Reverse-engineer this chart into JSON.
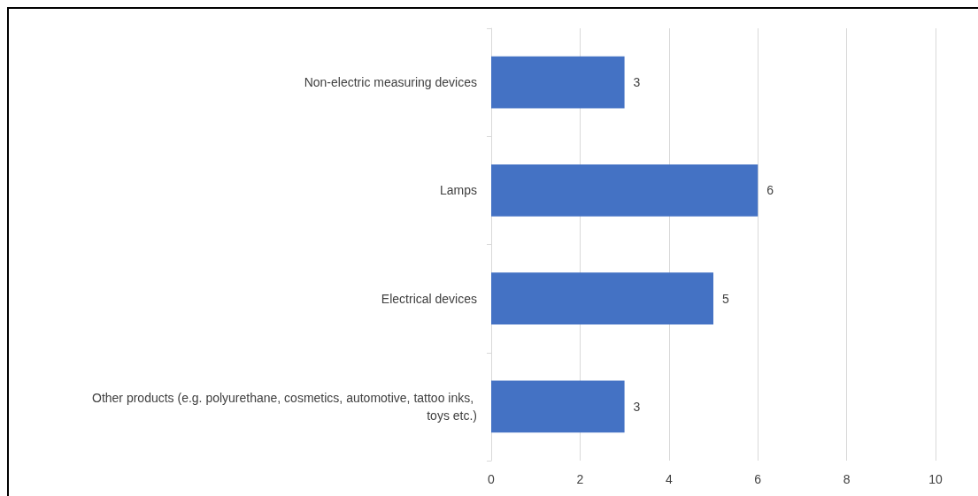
{
  "chart_data": {
    "type": "bar",
    "orientation": "horizontal",
    "categories": [
      "Non-electric measuring devices",
      "Lamps",
      "Electrical devices",
      "Other products (e.g. polyurethane, cosmetics, automotive, tattoo inks, toys etc.)"
    ],
    "values": [
      3,
      6,
      5,
      3
    ],
    "color": "#4472c4",
    "xlim": [
      0,
      10
    ],
    "xticks": [
      0,
      2,
      4,
      6,
      8,
      10
    ],
    "grid": "x",
    "data_labels": true
  }
}
